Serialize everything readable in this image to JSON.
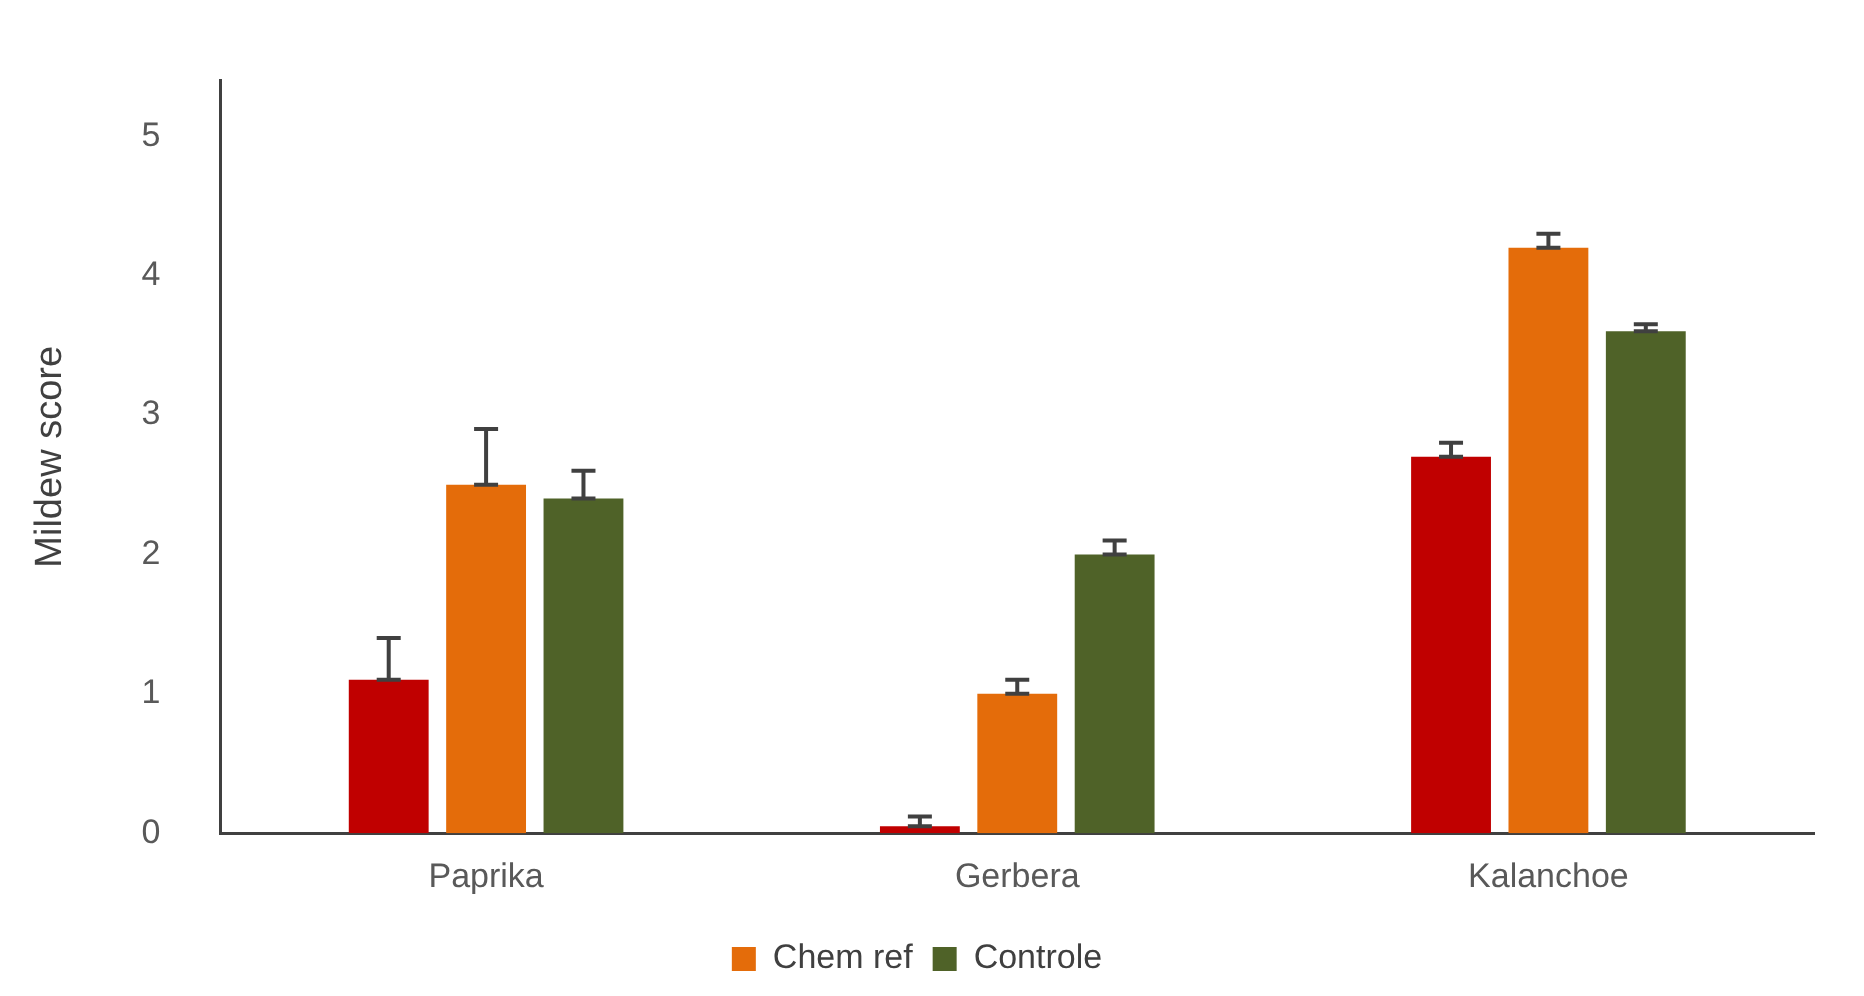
{
  "chart_data": {
    "type": "bar",
    "ylabel": "Mildew score",
    "categories": [
      "Paprika",
      "Gerbera",
      "Kalanchoe"
    ],
    "series": [
      {
        "color": "#c00000",
        "values": [
          1.1,
          0.05,
          2.7
        ],
        "errors": [
          [
            1.1,
            1.4
          ],
          [
            0.05,
            0.12
          ],
          [
            2.7,
            2.8
          ]
        ]
      },
      {
        "name": "Chem ref",
        "color": "#e46c0a",
        "values": [
          2.5,
          1.0,
          4.2
        ],
        "errors": [
          [
            2.5,
            2.9
          ],
          [
            1.0,
            1.1
          ],
          [
            4.2,
            4.3
          ]
        ]
      },
      {
        "name": "Controle",
        "color": "#4f6228",
        "values": [
          2.4,
          2.0,
          3.6
        ],
        "errors": [
          [
            2.4,
            2.6
          ],
          [
            2.0,
            2.1
          ],
          [
            3.6,
            3.65
          ]
        ]
      }
    ],
    "ylim": [
      0,
      5.4
    ],
    "yticks": [
      0,
      1,
      2,
      3,
      4,
      5
    ],
    "grid": false,
    "legend": "bottom"
  }
}
